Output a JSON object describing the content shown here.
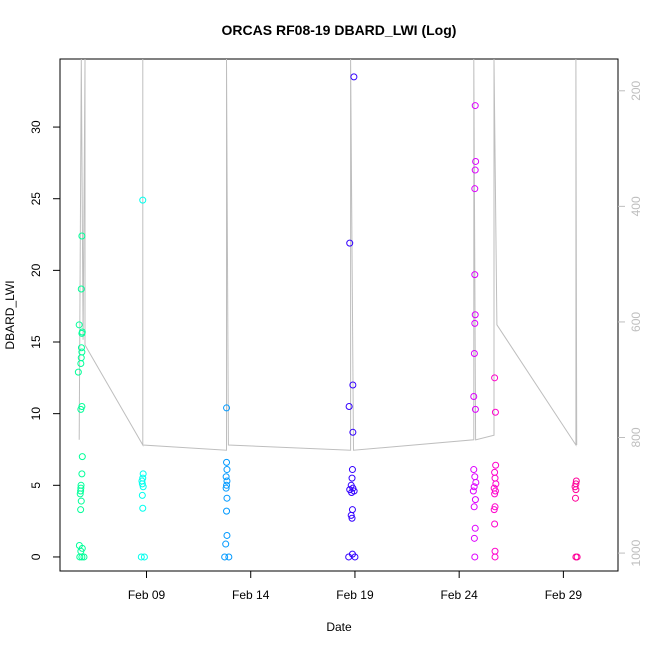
{
  "chart_data": {
    "type": "scatter",
    "title": "ORCAS RF08-19 DBARD_LWI (Log)",
    "xlabel": "Date",
    "ylabel": "DBARD_LWI",
    "xlim": [
      4.85,
      31.62
    ],
    "xticks": [
      {
        "value": 9,
        "label": "Feb 09"
      },
      {
        "value": 14,
        "label": "Feb 14"
      },
      {
        "value": 19,
        "label": "Feb 19"
      },
      {
        "value": 24,
        "label": "Feb 24"
      },
      {
        "value": 29,
        "label": "Feb 29"
      }
    ],
    "ylim": [
      -0.98,
      34.75
    ],
    "yticks": [
      0,
      5,
      10,
      15,
      20,
      25,
      30
    ],
    "y2lim": [
      1031,
      145
    ],
    "y2ticks": [
      200,
      400,
      600,
      800,
      1000
    ],
    "y2color": "#bebebe",
    "series": [
      {
        "type": "scatter",
        "color": "#00ff99",
        "x": [
          5.77,
          5.73,
          5.9,
          5.87,
          5.9,
          5.92,
          5.88,
          5.9,
          5.87,
          5.85,
          5.9,
          5.85,
          5.92,
          5.9,
          5.86,
          5.85,
          5.84,
          5.82,
          5.87,
          5.84,
          5.78,
          5.92,
          5.85,
          5.8,
          5.9,
          6.0
        ],
        "values": [
          16.2,
          12.9,
          22.4,
          18.7,
          15.6,
          15.7,
          14.6,
          14.3,
          13.9,
          13.5,
          10.5,
          10.3,
          7.0,
          5.8,
          5.0,
          4.8,
          4.6,
          4.4,
          3.9,
          3.3,
          0.8,
          0.6,
          0.4,
          0,
          0,
          0
        ]
      },
      {
        "type": "scatter",
        "color": "#00ffee",
        "x": [
          8.82,
          8.84,
          8.82,
          8.78,
          8.8,
          8.84,
          8.8,
          8.82,
          8.75,
          8.9
        ],
        "values": [
          24.9,
          5.8,
          5.5,
          5.3,
          5.1,
          4.9,
          4.3,
          3.4,
          0,
          0
        ]
      },
      {
        "type": "scatter",
        "color": "#0099ff",
        "x": [
          12.84,
          12.84,
          12.86,
          12.82,
          12.86,
          12.84,
          12.82,
          12.86,
          12.84,
          12.86,
          12.8,
          12.75,
          12.95
        ],
        "values": [
          10.4,
          6.6,
          6.1,
          5.6,
          5.3,
          5.0,
          4.8,
          4.1,
          3.2,
          1.5,
          0.9,
          0,
          0
        ]
      },
      {
        "type": "scatter",
        "color": "#3300ff",
        "x": [
          18.95,
          18.75,
          18.9,
          18.72,
          18.9,
          18.88,
          18.86,
          18.82,
          18.9,
          18.75,
          18.96,
          18.84,
          18.88,
          18.82,
          18.86,
          18.88,
          18.7,
          19.0
        ],
        "values": [
          33.5,
          21.9,
          12.0,
          10.5,
          8.7,
          6.1,
          5.5,
          5.0,
          4.8,
          4.7,
          4.6,
          4.5,
          3.3,
          2.9,
          2.7,
          0.2,
          0,
          0
        ]
      },
      {
        "type": "scatter",
        "color": "#dd00ff",
        "x": [
          24.77,
          24.79,
          24.77,
          24.75,
          24.75,
          24.77,
          24.75,
          24.73,
          24.7,
          24.78,
          24.7,
          24.75,
          24.8,
          24.72,
          24.68,
          24.78,
          24.72,
          24.77,
          24.73,
          24.75
        ],
        "values": [
          31.5,
          27.6,
          27.0,
          25.7,
          19.7,
          16.9,
          16.3,
          14.2,
          11.2,
          10.3,
          6.1,
          5.6,
          5.2,
          4.9,
          4.6,
          4.0,
          3.5,
          2.0,
          1.3,
          0
        ]
      },
      {
        "type": "scatter",
        "color": "#ff00cc",
        "x": [
          25.7,
          25.74,
          25.75,
          25.7,
          25.72,
          25.76,
          25.68,
          25.74,
          25.7,
          25.72,
          25.68,
          25.7,
          25.72,
          25.72
        ],
        "values": [
          12.5,
          10.1,
          6.4,
          5.9,
          5.5,
          5.1,
          4.8,
          4.6,
          4.4,
          3.5,
          3.3,
          2.3,
          0.4,
          0
        ]
      },
      {
        "type": "scatter",
        "color": "#ff0099",
        "x": [
          29.62,
          29.6,
          29.56,
          29.6,
          29.58,
          29.6,
          29.66
        ],
        "values": [
          5.3,
          5.1,
          4.9,
          4.7,
          4.1,
          0,
          0
        ]
      },
      {
        "type": "line",
        "axis": "y2",
        "color": "#bebebe",
        "x": [
          5.77,
          5.87,
          5.96,
          6.05,
          6.05,
          8.82,
          8.82,
          8.82,
          12.84,
          12.84,
          12.93,
          18.79,
          18.79,
          18.93,
          24.7,
          24.7,
          24.79,
          25.67,
          25.67,
          25.81,
          29.6,
          29.6,
          29.64
        ],
        "values": [
          804,
          145,
          631,
          145,
          640,
          813,
          145,
          813,
          822,
          145,
          813,
          822,
          145,
          822,
          804,
          145,
          804,
          796,
          145,
          605,
          813,
          145,
          813
        ]
      }
    ]
  }
}
